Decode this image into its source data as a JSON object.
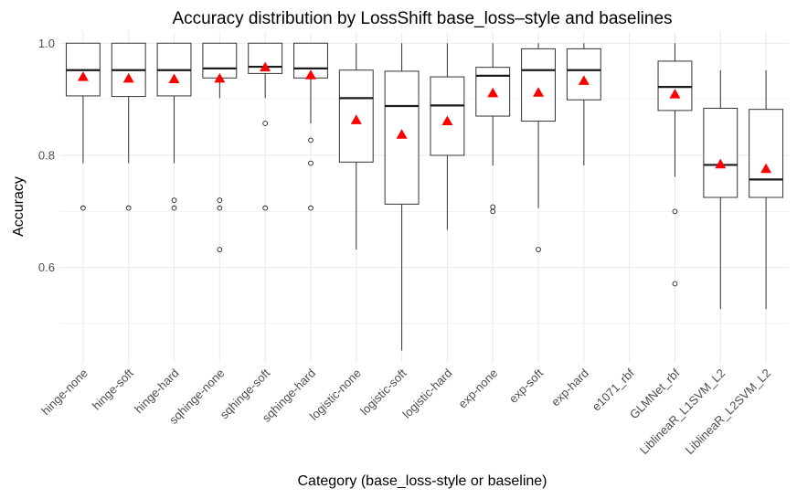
{
  "chart_data": {
    "type": "box",
    "title": "Accuracy distribution by LossShift base_loss–style and baselines",
    "xlabel": "Category (base_loss-style or baseline)",
    "ylabel": "Accuracy",
    "ylim": [
      0.43,
      1.02
    ],
    "yticks": [
      0.6,
      0.8,
      1.0
    ],
    "ytick_labels": [
      "0.6",
      "0.8",
      "1.0"
    ],
    "grid": true,
    "mean_marker": "red triangle",
    "colors": {
      "box_line": "#333333",
      "mean": "#ff0000",
      "grid": "#ebebeb"
    },
    "categories": [
      "hinge-none",
      "hinge-soft",
      "hinge-hard",
      "sqhinge-none",
      "sqhinge-soft",
      "sqhinge-hard",
      "logistic-none",
      "logistic-soft",
      "logistic-hard",
      "exp-none",
      "exp-soft",
      "exp-hard",
      "e1071_rbf",
      "GLMNet_rbf",
      "LiblineaR_L1SVM_L2",
      "LiblineaR_L2SVM_L2"
    ],
    "boxes": [
      {
        "whisker_low": 0.786,
        "q1": 0.906,
        "median": 0.952,
        "q3": 1.0,
        "whisker_high": 1.0,
        "mean": 0.94,
        "outliers": [
          0.706
        ]
      },
      {
        "whisker_low": 0.786,
        "q1": 0.905,
        "median": 0.952,
        "q3": 1.0,
        "whisker_high": 1.0,
        "mean": 0.937,
        "outliers": [
          0.706
        ]
      },
      {
        "whisker_low": 0.786,
        "q1": 0.906,
        "median": 0.952,
        "q3": 1.0,
        "whisker_high": 1.0,
        "mean": 0.936,
        "outliers": [
          0.706,
          0.72
        ]
      },
      {
        "whisker_low": 0.902,
        "q1": 0.938,
        "median": 0.955,
        "q3": 1.0,
        "whisker_high": 1.0,
        "mean": 0.937,
        "outliers": [
          0.632,
          0.706,
          0.72
        ]
      },
      {
        "whisker_low": 0.902,
        "q1": 0.946,
        "median": 0.958,
        "q3": 1.0,
        "whisker_high": 1.0,
        "mean": 0.957,
        "outliers": [
          0.706,
          0.857
        ]
      },
      {
        "whisker_low": 0.857,
        "q1": 0.938,
        "median": 0.955,
        "q3": 1.0,
        "whisker_high": 1.0,
        "mean": 0.943,
        "outliers": [
          0.706,
          0.786,
          0.827
        ]
      },
      {
        "whisker_low": 0.632,
        "q1": 0.788,
        "median": 0.902,
        "q3": 0.952,
        "whisker_high": 1.0,
        "mean": 0.863,
        "outliers": []
      },
      {
        "whisker_low": 0.452,
        "q1": 0.713,
        "median": 0.888,
        "q3": 0.95,
        "whisker_high": 1.0,
        "mean": 0.837,
        "outliers": []
      },
      {
        "whisker_low": 0.667,
        "q1": 0.8,
        "median": 0.889,
        "q3": 0.94,
        "whisker_high": 1.0,
        "mean": 0.861,
        "outliers": []
      },
      {
        "whisker_low": 0.782,
        "q1": 0.87,
        "median": 0.942,
        "q3": 0.957,
        "whisker_high": 1.0,
        "mean": 0.911,
        "outliers": [
          0.7,
          0.708
        ]
      },
      {
        "whisker_low": 0.706,
        "q1": 0.861,
        "median": 0.952,
        "q3": 0.99,
        "whisker_high": 1.0,
        "mean": 0.912,
        "outliers": [
          0.632
        ]
      },
      {
        "whisker_low": 0.782,
        "q1": 0.899,
        "median": 0.952,
        "q3": 0.99,
        "whisker_high": 1.0,
        "mean": 0.933,
        "outliers": []
      },
      null,
      {
        "whisker_low": 0.762,
        "q1": 0.88,
        "median": 0.922,
        "q3": 0.968,
        "whisker_high": 1.0,
        "mean": 0.909,
        "outliers": [
          0.571,
          0.7
        ]
      },
      {
        "whisker_low": 0.526,
        "q1": 0.725,
        "median": 0.783,
        "q3": 0.884,
        "whisker_high": 0.952,
        "mean": 0.784,
        "outliers": []
      },
      {
        "whisker_low": 0.526,
        "q1": 0.725,
        "median": 0.757,
        "q3": 0.882,
        "whisker_high": 0.952,
        "mean": 0.776,
        "outliers": []
      }
    ]
  }
}
